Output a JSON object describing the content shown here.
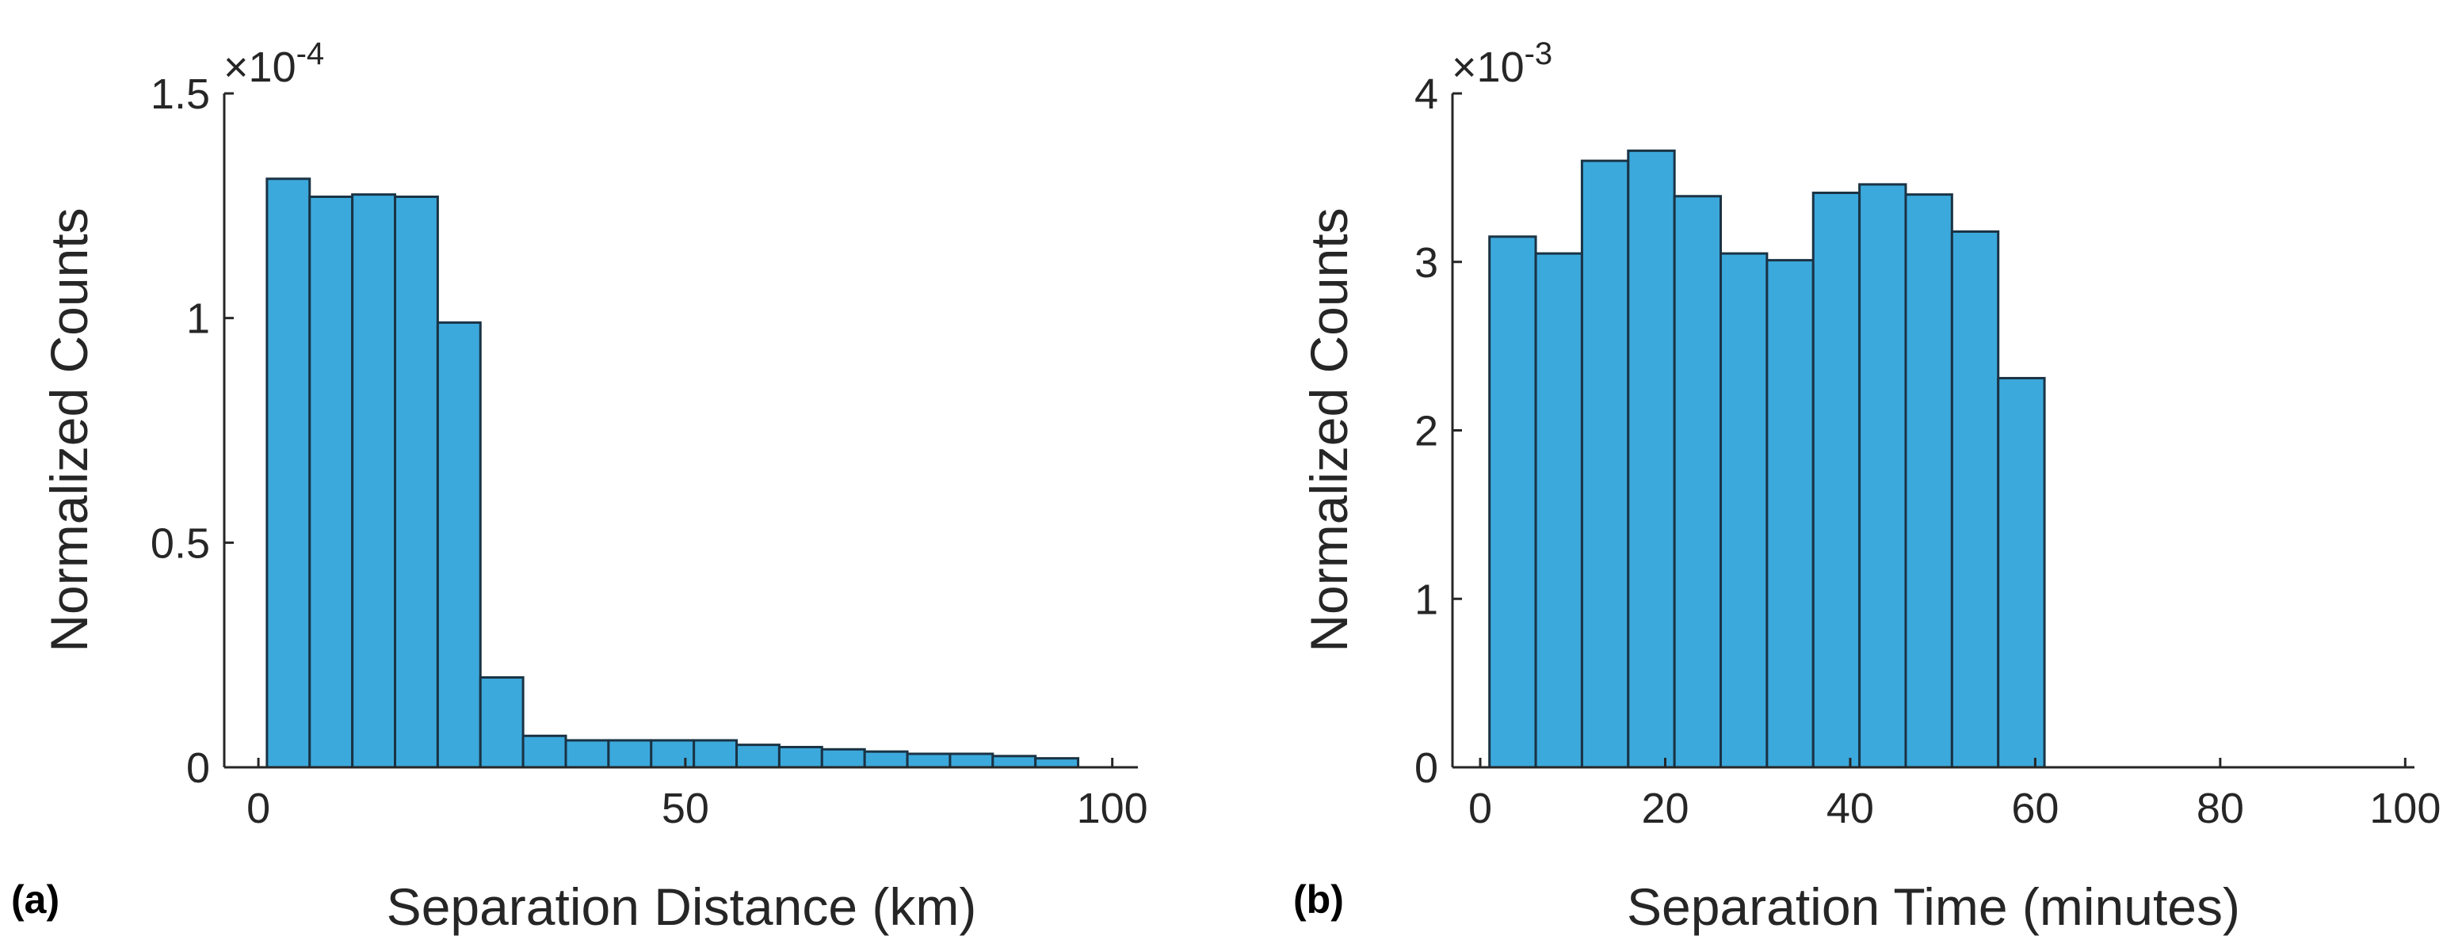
{
  "colors": {
    "bar_fill": "#3ca9dc",
    "bar_edge": "#1a3344",
    "axis": "#262626"
  },
  "chart_data": [
    {
      "type": "bar",
      "panel_label": "(a)",
      "title": "",
      "xlabel": "Separation Distance (km)",
      "ylabel": "Normalized Counts",
      "exponent_label": "×10",
      "exponent_power": "-4",
      "xlim": [
        -4,
        103
      ],
      "ylim": [
        0,
        1.5
      ],
      "xticks": [
        0,
        50,
        100
      ],
      "xtick_labels": [
        "0",
        "50",
        "100"
      ],
      "yticks": [
        0,
        0.5,
        1,
        1.5
      ],
      "ytick_labels": [
        "0",
        "0.5",
        "1",
        "1.5"
      ],
      "bin_edges": [
        1,
        6,
        11,
        16,
        21,
        26,
        31,
        36,
        41,
        46,
        51,
        56,
        61,
        66,
        71,
        76,
        81,
        86,
        91,
        96
      ],
      "values": [
        1.31,
        1.27,
        1.275,
        1.27,
        0.99,
        0.2,
        0.07,
        0.06,
        0.06,
        0.06,
        0.06,
        0.05,
        0.045,
        0.04,
        0.035,
        0.03,
        0.03,
        0.025,
        0.02
      ],
      "grid": false
    },
    {
      "type": "bar",
      "panel_label": "(b)",
      "title": "",
      "xlabel": "Separation Time (minutes)",
      "ylabel": "Normalized Counts",
      "exponent_label": "×10",
      "exponent_power": "-3",
      "xlim": [
        -3,
        101
      ],
      "ylim": [
        0,
        4
      ],
      "xticks": [
        0,
        20,
        40,
        60,
        80,
        100
      ],
      "xtick_labels": [
        "0",
        "20",
        "40",
        "60",
        "80",
        "100"
      ],
      "yticks": [
        0,
        1,
        2,
        3,
        4
      ],
      "ytick_labels": [
        "0",
        "1",
        "2",
        "3",
        "4"
      ],
      "bin_edges": [
        1,
        6,
        11,
        16,
        21,
        26,
        31,
        36,
        41,
        46,
        51,
        56,
        61
      ],
      "values": [
        3.15,
        3.05,
        3.6,
        3.66,
        3.39,
        3.05,
        3.01,
        3.41,
        3.46,
        3.4,
        3.18,
        2.31
      ],
      "grid": false
    }
  ]
}
